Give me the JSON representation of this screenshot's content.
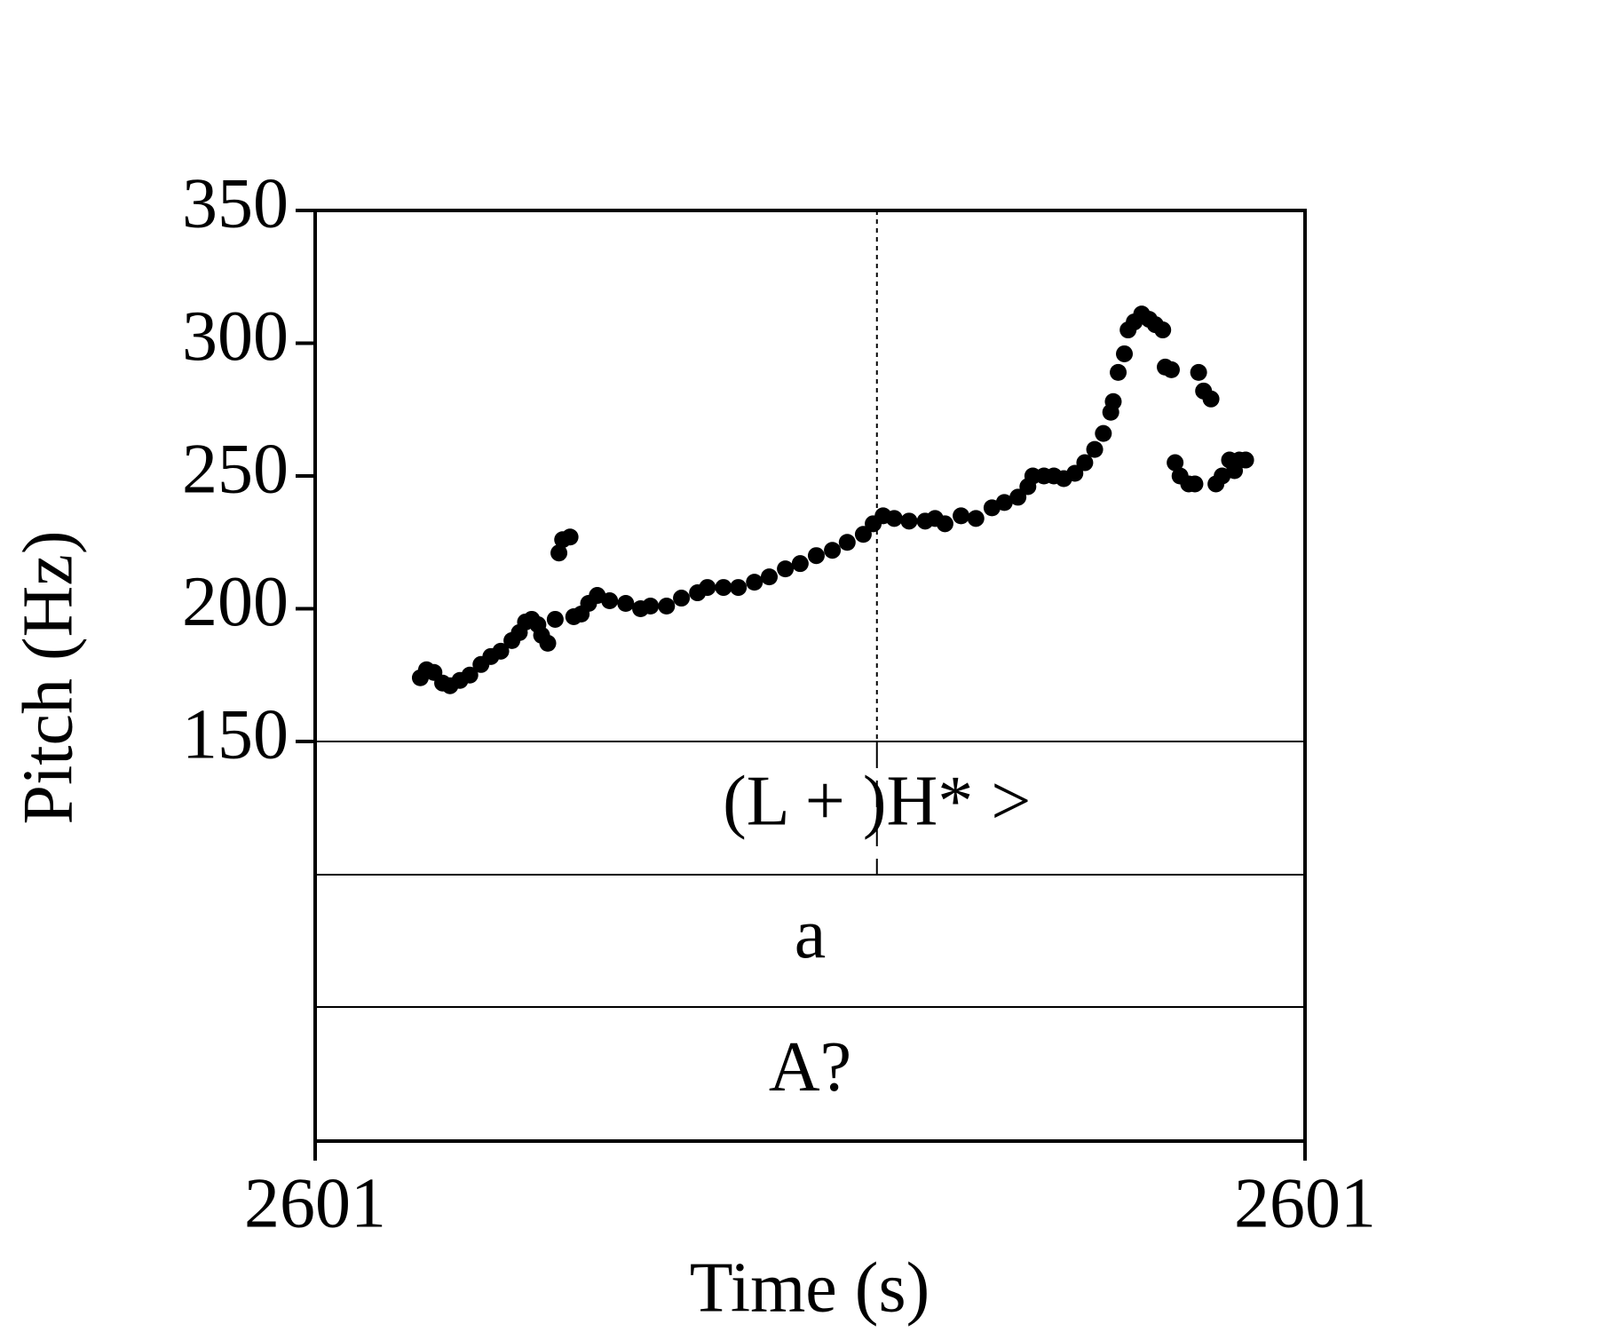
{
  "chart_data": {
    "type": "scatter",
    "x_label": "Time (s)",
    "y_label": "Pitch (Hz)",
    "xlim": [
      2600.6,
      2601.4
    ],
    "xticks": [
      {
        "value": 2600.6,
        "label": "2601"
      },
      {
        "value": 2601.4,
        "label": "2601"
      }
    ],
    "ylim": [
      150,
      350
    ],
    "yticks": [
      150,
      200,
      250,
      300,
      350
    ],
    "color": "#000000",
    "x": [
      2600.685,
      2600.69,
      2600.696,
      2600.703,
      2600.709,
      2600.717,
      2600.725,
      2600.734,
      2600.742,
      2600.75,
      2600.759,
      2600.765,
      2600.77,
      2600.775,
      2600.78,
      2600.783,
      2600.788,
      2600.794,
      2600.797,
      2600.8,
      2600.806,
      2600.809,
      2600.815,
      2600.821,
      2600.828,
      2600.838,
      2600.851,
      2600.863,
      2600.871,
      2600.884,
      2600.896,
      2600.909,
      2600.917,
      2600.93,
      2600.942,
      2600.955,
      2600.967,
      2600.98,
      2600.992,
      2601.005,
      2601.018,
      2601.03,
      2601.043,
      2601.051,
      2601.059,
      2601.068,
      2601.08,
      2601.093,
      2601.101,
      2601.109,
      2601.122,
      2601.134,
      2601.147,
      2601.157,
      2601.168,
      2601.176,
      2601.18,
      2601.189,
      2601.197,
      2601.205,
      2601.214,
      2601.222,
      2601.23,
      2601.237,
      2601.243,
      2601.245,
      2601.249,
      2601.254,
      2601.257,
      2601.262,
      2601.268,
      2601.274,
      2601.279,
      2601.285,
      2601.287,
      2601.292,
      2601.295,
      2601.299,
      2601.306,
      2601.311,
      2601.314,
      2601.318,
      2601.324,
      2601.328,
      2601.333,
      2601.339,
      2601.343,
      2601.347,
      2601.352
    ],
    "values": [
      174,
      177,
      176,
      172,
      171,
      173,
      175,
      179,
      182,
      184,
      188,
      191,
      195,
      196,
      194,
      190,
      187,
      196,
      221,
      226,
      227,
      197,
      198,
      202,
      205,
      203,
      202,
      200,
      201,
      201,
      204,
      206,
      208,
      208,
      208,
      210,
      212,
      215,
      217,
      220,
      222,
      225,
      228,
      232,
      235,
      234,
      233,
      233,
      234,
      232,
      235,
      234,
      238,
      240,
      242,
      246,
      250,
      250,
      250,
      249,
      251,
      255,
      260,
      266,
      274,
      278,
      289,
      296,
      305,
      308,
      311,
      309,
      307,
      305,
      291,
      290,
      255,
      250,
      247,
      247,
      289,
      282,
      279,
      247,
      250,
      256,
      252,
      256,
      256
    ],
    "tiers": [
      {
        "label": "(L + )H* >",
        "time": 2601.054
      },
      {
        "label": "a"
      },
      {
        "label": "A?"
      }
    ]
  }
}
